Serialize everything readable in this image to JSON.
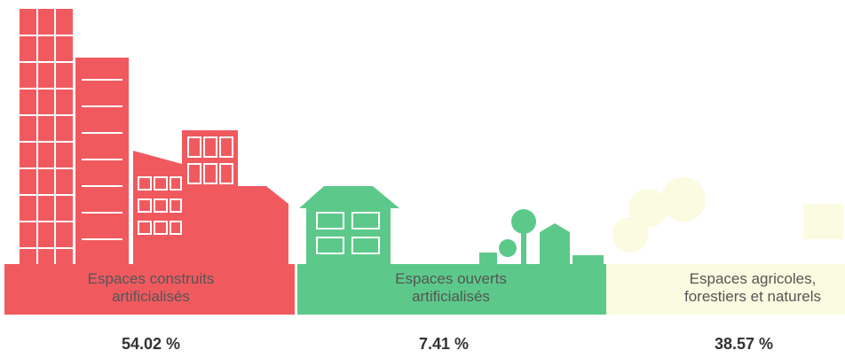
{
  "items": [
    {
      "label_lines": [
        "Espaces construits",
        "artificialisés"
      ],
      "value": "54.02 %"
    },
    {
      "label_lines": [
        "Espaces ouverts",
        "artificialisés"
      ],
      "value": "7.41 %"
    },
    {
      "label_lines": [
        "Espaces agricoles,",
        "forestiers et naturels"
      ],
      "value": "38.57 %"
    }
  ]
}
